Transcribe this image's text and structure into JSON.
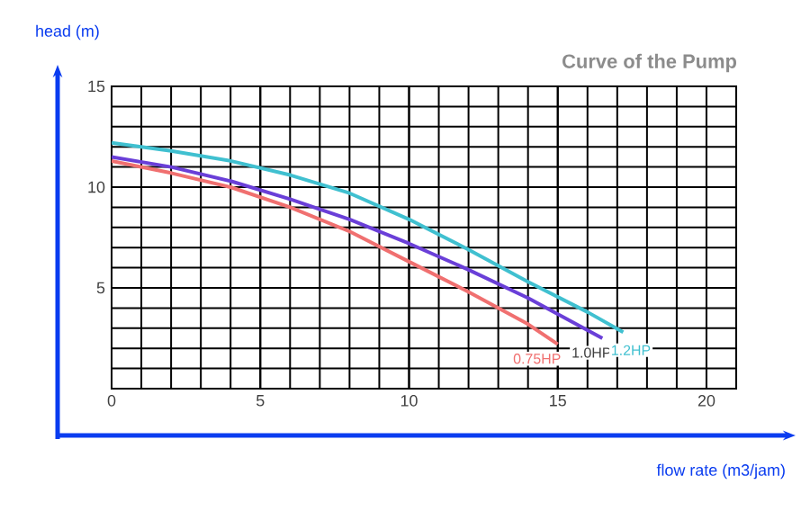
{
  "chart_data": {
    "type": "line",
    "title": "Curve of the Pump",
    "xlabel": "flow rate (m3/jam)",
    "ylabel": "head (m)",
    "xlim": [
      0,
      21
    ],
    "ylim": [
      0,
      15
    ],
    "xticks": [
      0,
      5,
      10,
      15,
      20
    ],
    "yticks": [
      5,
      10,
      15
    ],
    "grid": true,
    "marker": "none",
    "line_style": "solid",
    "series": [
      {
        "name": "0.75HP",
        "color": "#f07070",
        "x": [
          0,
          2,
          4,
          6,
          8,
          10,
          12,
          14,
          15
        ],
        "values": [
          11.3,
          10.7,
          10.0,
          9.0,
          7.8,
          6.3,
          4.8,
          3.2,
          2.2
        ]
      },
      {
        "name": "1.0HP",
        "color": "#6a3fd8",
        "x": [
          0,
          2,
          4,
          6,
          8,
          10,
          12,
          14,
          16.5
        ],
        "values": [
          11.5,
          11.0,
          10.3,
          9.4,
          8.4,
          7.2,
          5.9,
          4.5,
          2.5
        ]
      },
      {
        "name": "1.2HP",
        "color": "#40c0d0",
        "x": [
          0,
          2,
          4,
          6,
          8,
          10,
          12,
          14,
          16,
          17.2
        ],
        "values": [
          12.2,
          11.8,
          11.3,
          10.6,
          9.7,
          8.4,
          6.9,
          5.3,
          3.8,
          2.8
        ]
      }
    ]
  }
}
